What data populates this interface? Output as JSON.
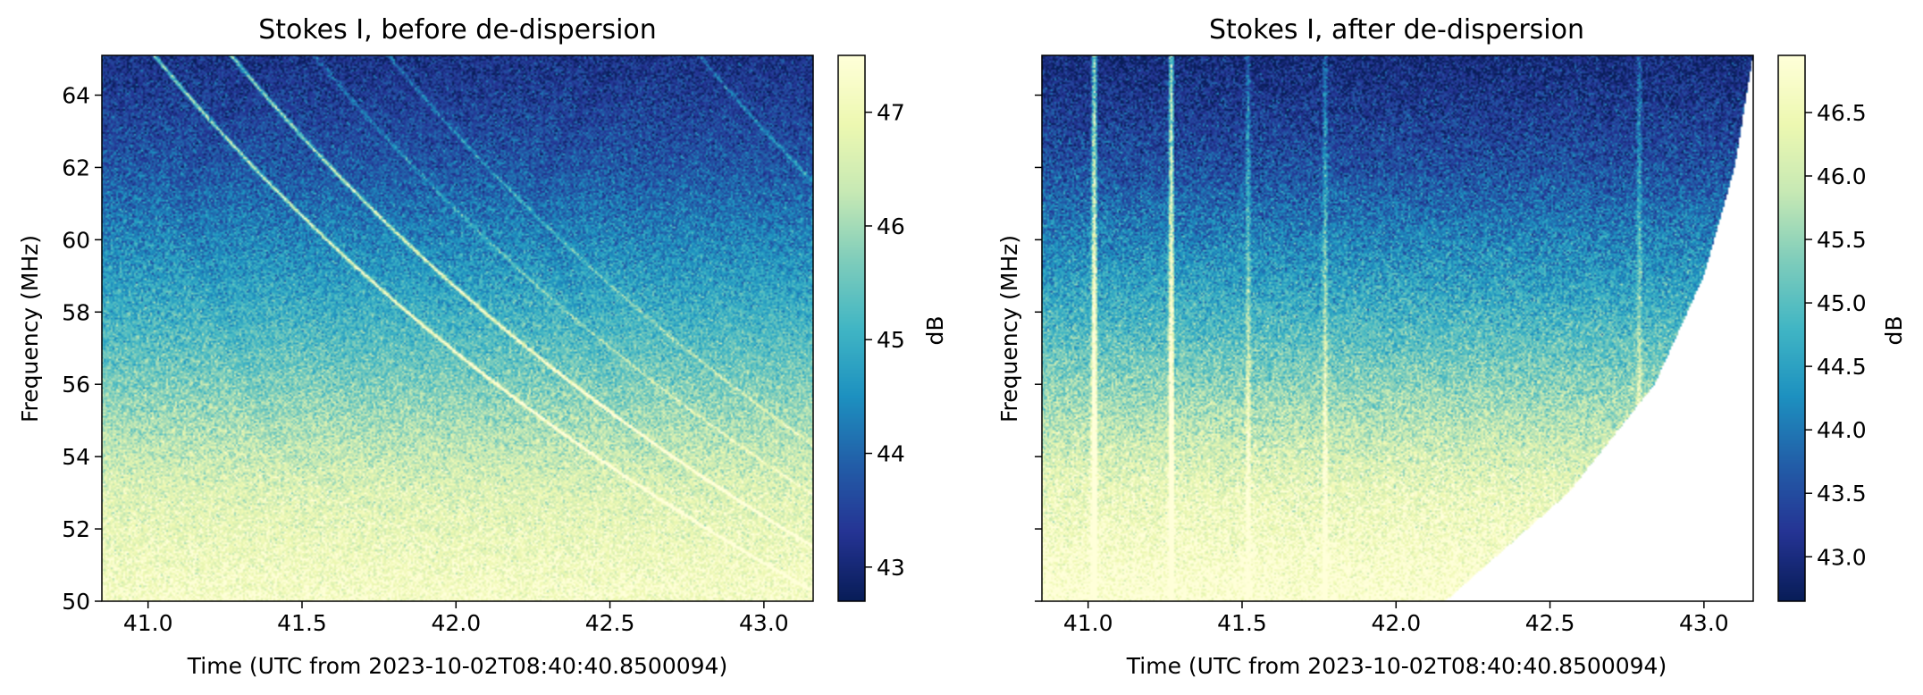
{
  "chart_data": [
    {
      "type": "heatmap",
      "title": "Stokes I, before de-dispersion",
      "xlabel": "Time (UTC from 2023-10-02T08:40:40.8500094)",
      "ylabel": "Frequency (MHz)",
      "xlim": [
        40.85,
        43.16
      ],
      "ylim": [
        50.0,
        65.1
      ],
      "xticks": [
        41.0,
        41.5,
        42.0,
        42.5,
        43.0
      ],
      "xticklabels": [
        "41.0",
        "41.5",
        "42.0",
        "42.5",
        "43.0"
      ],
      "yticks": [
        50,
        52,
        54,
        56,
        58,
        60,
        62,
        64
      ],
      "yticklabels": [
        "50",
        "52",
        "54",
        "56",
        "58",
        "60",
        "62",
        "64"
      ],
      "colormap": "YlGnBu_r",
      "colorbar": {
        "label": "dB",
        "range": [
          42.7,
          47.5
        ],
        "ticks": [
          43,
          44,
          45,
          46,
          47
        ],
        "ticklabels": [
          "43",
          "44",
          "45",
          "46",
          "47"
        ]
      },
      "background_trend": [
        {
          "frequency_mhz": 50.0,
          "level_db": 47.3
        },
        {
          "frequency_mhz": 53.0,
          "level_db": 46.7
        },
        {
          "frequency_mhz": 56.0,
          "level_db": 45.7
        },
        {
          "frequency_mhz": 59.0,
          "level_db": 44.7
        },
        {
          "frequency_mhz": 62.0,
          "level_db": 43.8
        },
        {
          "frequency_mhz": 65.0,
          "level_db": 43.2
        }
      ],
      "dispersed_pulses": [
        {
          "time_at_top": 41.02,
          "strength": "strong"
        },
        {
          "time_at_top": 41.27,
          "strength": "strong"
        },
        {
          "time_at_top": 41.54,
          "strength": "weak"
        },
        {
          "time_at_top": 41.78,
          "strength": "weak"
        },
        {
          "time_at_top": 42.79,
          "strength": "weak"
        }
      ]
    },
    {
      "type": "heatmap",
      "title": "Stokes I, after de-dispersion",
      "xlabel": "Time (UTC from 2023-10-02T08:40:40.8500094)",
      "ylabel": "Frequency (MHz)",
      "xlim": [
        40.85,
        43.16
      ],
      "ylim": [
        50.0,
        65.1
      ],
      "xticks": [
        41.0,
        41.5,
        42.0,
        42.5,
        43.0
      ],
      "xticklabels": [
        "41.0",
        "41.5",
        "42.0",
        "42.5",
        "43.0"
      ],
      "yticks": [
        50,
        52,
        54,
        56,
        58,
        60,
        62,
        64
      ],
      "yticklabels": [],
      "colormap": "YlGnBu_r",
      "colorbar": {
        "label": "dB",
        "range": [
          42.65,
          46.95
        ],
        "ticks": [
          43.0,
          43.5,
          44.0,
          44.5,
          45.0,
          45.5,
          46.0,
          46.5
        ],
        "ticklabels": [
          "43.0",
          "43.5",
          "44.0",
          "44.5",
          "45.0",
          "45.5",
          "46.0",
          "46.5"
        ]
      },
      "valid_region_edge": [
        {
          "frequency_mhz": 50.0,
          "time": 42.16
        },
        {
          "frequency_mhz": 53.0,
          "time": 42.56
        },
        {
          "frequency_mhz": 56.0,
          "time": 42.84
        },
        {
          "frequency_mhz": 59.0,
          "time": 43.0
        },
        {
          "frequency_mhz": 62.0,
          "time": 43.1
        },
        {
          "frequency_mhz": 65.1,
          "time": 43.16
        }
      ],
      "pulses_time": [
        41.02,
        41.27,
        41.52,
        41.77,
        42.79
      ]
    }
  ],
  "colors": {
    "colormap_stops": [
      "#081d58",
      "#253494",
      "#225ea8",
      "#1d91c0",
      "#41b6c4",
      "#7fcdbb",
      "#c7e9b4",
      "#edf8b1",
      "#ffffd9"
    ]
  }
}
